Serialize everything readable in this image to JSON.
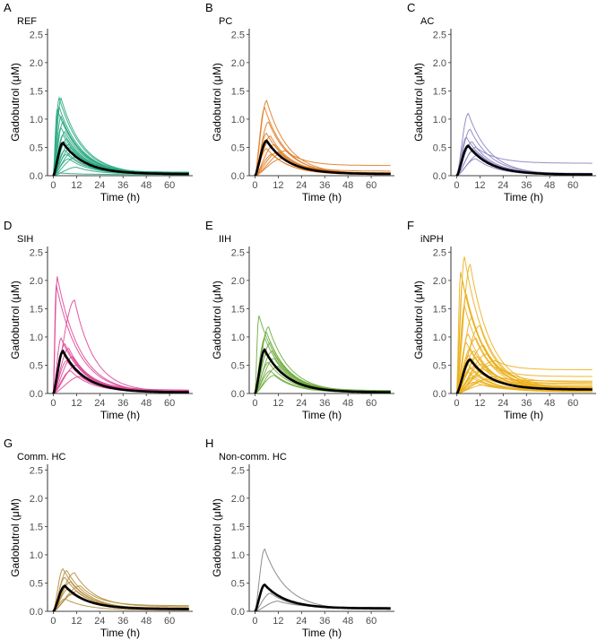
{
  "chart_data": [
    {
      "letter": "A",
      "title": "REF",
      "type": "line",
      "xlabel": "Time (h)",
      "ylabel": "Gadobutrol (μM)",
      "xlim": [
        -3,
        72
      ],
      "ylim": [
        0,
        2.6
      ],
      "xticks": [
        0,
        12,
        24,
        36,
        48,
        60
      ],
      "yticks": [
        0.0,
        0.5,
        1.0,
        1.5,
        2.0,
        2.5
      ],
      "color": "#2BA882",
      "mean": {
        "peak": 0.58,
        "tpeak": 5,
        "end": 0.03
      },
      "individuals": [
        {
          "peak": 1.38,
          "tpeak": 3,
          "end": 0.02
        },
        {
          "peak": 1.37,
          "tpeak": 4,
          "end": 0.03
        },
        {
          "peak": 1.22,
          "tpeak": 3,
          "end": 0.02
        },
        {
          "peak": 1.18,
          "tpeak": 2,
          "end": 0.01
        },
        {
          "peak": 1.05,
          "tpeak": 4,
          "end": 0.03
        },
        {
          "peak": 0.95,
          "tpeak": 5,
          "end": 0.04
        },
        {
          "peak": 0.85,
          "tpeak": 4,
          "end": 0.03
        },
        {
          "peak": 0.78,
          "tpeak": 6,
          "end": 0.05
        },
        {
          "peak": 0.72,
          "tpeak": 5,
          "end": 0.03
        },
        {
          "peak": 0.65,
          "tpeak": 7,
          "end": 0.05
        },
        {
          "peak": 0.6,
          "tpeak": 6,
          "end": 0.04
        },
        {
          "peak": 0.55,
          "tpeak": 8,
          "end": 0.06
        },
        {
          "peak": 0.5,
          "tpeak": 9,
          "end": 0.05
        },
        {
          "peak": 0.45,
          "tpeak": 6,
          "end": 0.03
        },
        {
          "peak": 0.42,
          "tpeak": 10,
          "end": 0.06
        },
        {
          "peak": 0.38,
          "tpeak": 7,
          "end": 0.03
        },
        {
          "peak": 0.33,
          "tpeak": 12,
          "end": 0.05
        },
        {
          "peak": 0.3,
          "tpeak": 8,
          "end": 0.03
        },
        {
          "peak": 0.15,
          "tpeak": 12,
          "end": 0.03
        },
        {
          "peak": 0.05,
          "tpeak": 2,
          "end": 0.02
        }
      ]
    },
    {
      "letter": "B",
      "title": "PC",
      "type": "line",
      "xlabel": "Time (h)",
      "ylabel": "Gadobutrol (μM)",
      "xlim": [
        -3,
        72
      ],
      "ylim": [
        0,
        2.6
      ],
      "xticks": [
        0,
        12,
        24,
        36,
        48,
        60
      ],
      "yticks": [
        0.0,
        0.5,
        1.0,
        1.5,
        2.0,
        2.5
      ],
      "color": "#E07B22",
      "mean": {
        "peak": 0.62,
        "tpeak": 6,
        "end": 0.03
      },
      "individuals": [
        {
          "peak": 1.33,
          "tpeak": 6,
          "end": 0.03
        },
        {
          "peak": 1.2,
          "tpeak": 5,
          "end": 0.02
        },
        {
          "peak": 0.95,
          "tpeak": 7,
          "end": 0.04
        },
        {
          "peak": 0.75,
          "tpeak": 6,
          "end": 0.03
        },
        {
          "peak": 0.7,
          "tpeak": 8,
          "end": 0.04
        },
        {
          "peak": 0.6,
          "tpeak": 7,
          "end": 0.03
        },
        {
          "peak": 0.55,
          "tpeak": 10,
          "end": 0.05
        },
        {
          "peak": 0.48,
          "tpeak": 6,
          "end": 0.02
        },
        {
          "peak": 0.44,
          "tpeak": 16,
          "end": 0.18
        },
        {
          "peak": 0.42,
          "tpeak": 12,
          "end": 0.08
        },
        {
          "peak": 0.38,
          "tpeak": 9,
          "end": 0.03
        },
        {
          "peak": 0.3,
          "tpeak": 14,
          "end": 0.05
        }
      ]
    },
    {
      "letter": "C",
      "title": "AC",
      "type": "line",
      "xlabel": "Time (h)",
      "ylabel": "Gadobutrol (μM)",
      "xlim": [
        -3,
        72
      ],
      "ylim": [
        0,
        2.6
      ],
      "xticks": [
        0,
        12,
        24,
        36,
        48,
        60
      ],
      "yticks": [
        0.0,
        0.5,
        1.0,
        1.5,
        2.0,
        2.5
      ],
      "color": "#8A84BF",
      "mean": {
        "peak": 0.53,
        "tpeak": 6,
        "end": 0.02
      },
      "individuals": [
        {
          "peak": 1.1,
          "tpeak": 6,
          "end": 0.02
        },
        {
          "peak": 0.82,
          "tpeak": 7,
          "end": 0.03
        },
        {
          "peak": 0.68,
          "tpeak": 5,
          "end": 0.02
        },
        {
          "peak": 0.6,
          "tpeak": 8,
          "end": 0.03
        },
        {
          "peak": 0.5,
          "tpeak": 10,
          "end": 0.22
        },
        {
          "peak": 0.45,
          "tpeak": 9,
          "end": 0.04
        },
        {
          "peak": 0.38,
          "tpeak": 12,
          "end": 0.03
        },
        {
          "peak": 0.3,
          "tpeak": 10,
          "end": 0.02
        }
      ]
    },
    {
      "letter": "D",
      "title": "SIH",
      "type": "line",
      "xlabel": "Time (h)",
      "ylabel": "Gadobutrol (μM)",
      "xlim": [
        -3,
        72
      ],
      "ylim": [
        0,
        2.6
      ],
      "xticks": [
        0,
        12,
        24,
        36,
        48,
        60
      ],
      "yticks": [
        0.0,
        0.5,
        1.0,
        1.5,
        2.0,
        2.5
      ],
      "color": "#DE4699",
      "mean": {
        "peak": 0.75,
        "tpeak": 5,
        "end": 0.02
      },
      "individuals": [
        {
          "peak": 2.07,
          "tpeak": 2,
          "end": 0.01
        },
        {
          "peak": 1.92,
          "tpeak": 1.5,
          "end": 0.01
        },
        {
          "peak": 1.65,
          "tpeak": 11,
          "end": 0.03
        },
        {
          "peak": 0.98,
          "tpeak": 4,
          "end": 0.02
        },
        {
          "peak": 0.88,
          "tpeak": 6,
          "end": 0.03
        },
        {
          "peak": 0.8,
          "tpeak": 8,
          "end": 0.04
        },
        {
          "peak": 0.72,
          "tpeak": 5,
          "end": 0.02
        },
        {
          "peak": 0.65,
          "tpeak": 10,
          "end": 0.06
        },
        {
          "peak": 0.58,
          "tpeak": 7,
          "end": 0.03
        },
        {
          "peak": 0.5,
          "tpeak": 12,
          "end": 0.04
        },
        {
          "peak": 0.4,
          "tpeak": 9,
          "end": 0.03
        },
        {
          "peak": 0.3,
          "tpeak": 14,
          "end": 0.05
        }
      ]
    },
    {
      "letter": "E",
      "title": "IIH",
      "type": "line",
      "xlabel": "Time (h)",
      "ylabel": "Gadobutrol (μM)",
      "xlim": [
        -3,
        72
      ],
      "ylim": [
        0,
        2.6
      ],
      "xticks": [
        0,
        12,
        24,
        36,
        48,
        60
      ],
      "yticks": [
        0.0,
        0.5,
        1.0,
        1.5,
        2.0,
        2.5
      ],
      "color": "#6FAC3F",
      "mean": {
        "peak": 0.77,
        "tpeak": 5,
        "end": 0.02
      },
      "individuals": [
        {
          "peak": 1.38,
          "tpeak": 2,
          "end": 0.01
        },
        {
          "peak": 1.18,
          "tpeak": 7,
          "end": 0.03
        },
        {
          "peak": 1.08,
          "tpeak": 6,
          "end": 0.02
        },
        {
          "peak": 0.98,
          "tpeak": 5,
          "end": 0.03
        },
        {
          "peak": 0.9,
          "tpeak": 8,
          "end": 0.04
        },
        {
          "peak": 0.82,
          "tpeak": 4,
          "end": 0.02
        },
        {
          "peak": 0.75,
          "tpeak": 9,
          "end": 0.05
        },
        {
          "peak": 0.7,
          "tpeak": 6,
          "end": 0.03
        },
        {
          "peak": 0.62,
          "tpeak": 10,
          "end": 0.04
        },
        {
          "peak": 0.55,
          "tpeak": 7,
          "end": 0.02
        },
        {
          "peak": 0.48,
          "tpeak": 12,
          "end": 0.05
        },
        {
          "peak": 0.4,
          "tpeak": 8,
          "end": 0.03
        },
        {
          "peak": 0.32,
          "tpeak": 10,
          "end": 0.02
        }
      ]
    },
    {
      "letter": "F",
      "title": "iNPH",
      "type": "line",
      "xlabel": "Time (h)",
      "ylabel": "Gadobutrol (μM)",
      "xlim": [
        -3,
        72
      ],
      "ylim": [
        0,
        2.6
      ],
      "xticks": [
        0,
        12,
        24,
        36,
        48,
        60
      ],
      "yticks": [
        0.0,
        0.5,
        1.0,
        1.5,
        2.0,
        2.5
      ],
      "color": "#EBB01E",
      "mean": {
        "peak": 0.6,
        "tpeak": 7,
        "end": 0.07
      },
      "individuals": [
        {
          "peak": 2.42,
          "tpeak": 4,
          "end": 0.05
        },
        {
          "peak": 2.28,
          "tpeak": 7,
          "end": 0.08
        },
        {
          "peak": 2.15,
          "tpeak": 2,
          "end": 0.03
        },
        {
          "peak": 2.0,
          "tpeak": 3,
          "end": 0.04
        },
        {
          "peak": 1.75,
          "tpeak": 5,
          "end": 0.06
        },
        {
          "peak": 1.55,
          "tpeak": 4,
          "end": 0.05
        },
        {
          "peak": 1.35,
          "tpeak": 8,
          "end": 0.08
        },
        {
          "peak": 1.2,
          "tpeak": 12,
          "end": 0.1
        },
        {
          "peak": 1.05,
          "tpeak": 6,
          "end": 0.05
        },
        {
          "peak": 0.98,
          "tpeak": 10,
          "end": 0.12
        },
        {
          "peak": 0.9,
          "tpeak": 5,
          "end": 0.06
        },
        {
          "peak": 0.85,
          "tpeak": 14,
          "end": 0.15
        },
        {
          "peak": 0.8,
          "tpeak": 7,
          "end": 0.04
        },
        {
          "peak": 0.75,
          "tpeak": 9,
          "end": 0.08
        },
        {
          "peak": 0.7,
          "tpeak": 16,
          "end": 0.2
        },
        {
          "peak": 0.68,
          "tpeak": 6,
          "end": 0.05
        },
        {
          "peak": 0.65,
          "tpeak": 11,
          "end": 0.1
        },
        {
          "peak": 0.6,
          "tpeak": 8,
          "end": 0.06
        },
        {
          "peak": 0.58,
          "tpeak": 20,
          "end": 0.42
        },
        {
          "peak": 0.55,
          "tpeak": 5,
          "end": 0.03
        },
        {
          "peak": 0.52,
          "tpeak": 13,
          "end": 0.12
        },
        {
          "peak": 0.5,
          "tpeak": 18,
          "end": 0.3
        },
        {
          "peak": 0.48,
          "tpeak": 9,
          "end": 0.07
        },
        {
          "peak": 0.45,
          "tpeak": 7,
          "end": 0.04
        },
        {
          "peak": 0.42,
          "tpeak": 15,
          "end": 0.18
        },
        {
          "peak": 0.4,
          "tpeak": 11,
          "end": 0.08
        },
        {
          "peak": 0.38,
          "tpeak": 6,
          "end": 0.03
        },
        {
          "peak": 0.35,
          "tpeak": 14,
          "end": 0.1
        },
        {
          "peak": 0.32,
          "tpeak": 10,
          "end": 0.06
        },
        {
          "peak": 0.3,
          "tpeak": 20,
          "end": 0.22
        },
        {
          "peak": 0.28,
          "tpeak": 8,
          "end": 0.04
        },
        {
          "peak": 0.25,
          "tpeak": 16,
          "end": 0.12
        },
        {
          "peak": 0.22,
          "tpeak": 12,
          "end": 0.07
        },
        {
          "peak": 0.2,
          "tpeak": 9,
          "end": 0.05
        },
        {
          "peak": 0.15,
          "tpeak": 14,
          "end": 0.08
        }
      ]
    },
    {
      "letter": "G",
      "title": "Comm. HC",
      "type": "line",
      "xlabel": "Time (h)",
      "ylabel": "Gadobutrol (μM)",
      "xlim": [
        -3,
        72
      ],
      "ylim": [
        0,
        2.6
      ],
      "xticks": [
        0,
        12,
        24,
        36,
        48,
        60
      ],
      "yticks": [
        0.0,
        0.5,
        1.0,
        1.5,
        2.0,
        2.5
      ],
      "color": "#B48C3C",
      "mean": {
        "peak": 0.45,
        "tpeak": 6,
        "end": 0.04
      },
      "individuals": [
        {
          "peak": 0.75,
          "tpeak": 5,
          "end": 0.03
        },
        {
          "peak": 0.72,
          "tpeak": 7,
          "end": 0.04
        },
        {
          "peak": 0.68,
          "tpeak": 11,
          "end": 0.08
        },
        {
          "peak": 0.6,
          "tpeak": 6,
          "end": 0.03
        },
        {
          "peak": 0.52,
          "tpeak": 9,
          "end": 0.05
        },
        {
          "peak": 0.45,
          "tpeak": 14,
          "end": 0.1
        },
        {
          "peak": 0.4,
          "tpeak": 8,
          "end": 0.04
        },
        {
          "peak": 0.35,
          "tpeak": 12,
          "end": 0.06
        },
        {
          "peak": 0.3,
          "tpeak": 10,
          "end": 0.05
        },
        {
          "peak": 0.22,
          "tpeak": 6,
          "end": 0.02
        }
      ]
    },
    {
      "letter": "H",
      "title": "Non-comm. HC",
      "type": "line",
      "xlabel": "Time (h)",
      "ylabel": "Gadobutrol (μM)",
      "xlim": [
        -3,
        72
      ],
      "ylim": [
        0,
        2.6
      ],
      "xticks": [
        0,
        12,
        24,
        36,
        48,
        60
      ],
      "yticks": [
        0.0,
        0.5,
        1.0,
        1.5,
        2.0,
        2.5
      ],
      "color": "#808080",
      "mean": {
        "peak": 0.47,
        "tpeak": 5,
        "end": 0.05
      },
      "individuals": [
        {
          "peak": 1.1,
          "tpeak": 5,
          "end": 0.03
        },
        {
          "peak": 0.32,
          "tpeak": 8,
          "end": 0.05
        },
        {
          "peak": 0.18,
          "tpeak": 12,
          "end": 0.07
        }
      ]
    }
  ]
}
